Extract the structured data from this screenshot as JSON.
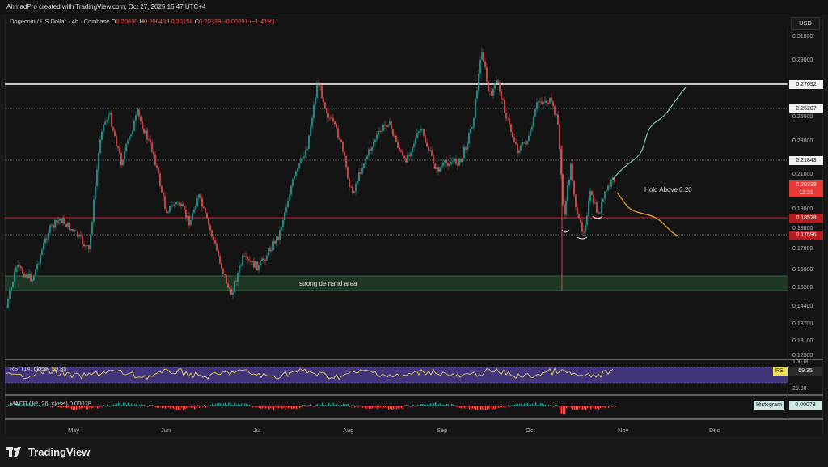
{
  "header": {
    "credit": "AhmadPro created with TradingView.com, Oct 27, 2025 15:47 UTC+4"
  },
  "symbol": {
    "name": "Dogecoin / US Dollar · 4h · Coinbase",
    "open_label": "O",
    "open": "0.20630",
    "high_label": "H",
    "high": "0.20649",
    "low_label": "L",
    "low": "0.20158",
    "close_label": "C",
    "close": "0.20339",
    "change": "−0.00291 (−1.41%)"
  },
  "currency_button": "USD",
  "price_axis": [
    "0.31000",
    "0.29000",
    "0.25000",
    "0.23000",
    "0.21000",
    "0.19000",
    "0.18000",
    "0.17000",
    "0.16000",
    "0.15200",
    "0.14400",
    "0.13700",
    "0.13100",
    "0.12500"
  ],
  "price_tags": {
    "level1": "0.27092",
    "level2": "0.25287",
    "level3": "0.21843",
    "current": "0.20339",
    "countdown": "12:31",
    "level4": "0.18528",
    "level5": "0.17596"
  },
  "annotations": {
    "demand": "strong demand area",
    "hold": "Hold Above 0.20"
  },
  "rsi": {
    "label": "RSI (14, close)",
    "value": "59.35",
    "tag": "RSI",
    "upper": "100.00",
    "lower": "20.00"
  },
  "macd": {
    "label": "MACD (12, 26, close)",
    "value": "0.00078",
    "hist_tag": "Histogram",
    "hist_value": "0.00078"
  },
  "months": [
    "May",
    "Jun",
    "Jul",
    "Aug",
    "Sep",
    "Oct",
    "Nov",
    "Dec"
  ],
  "brand": "TradingView",
  "colors": {
    "up": "#26a69a",
    "down": "#ef5350",
    "rsi_line": "#f1e05a",
    "rsi_band": "#4a3a8c",
    "demand_zone": "#1f3a26"
  }
}
